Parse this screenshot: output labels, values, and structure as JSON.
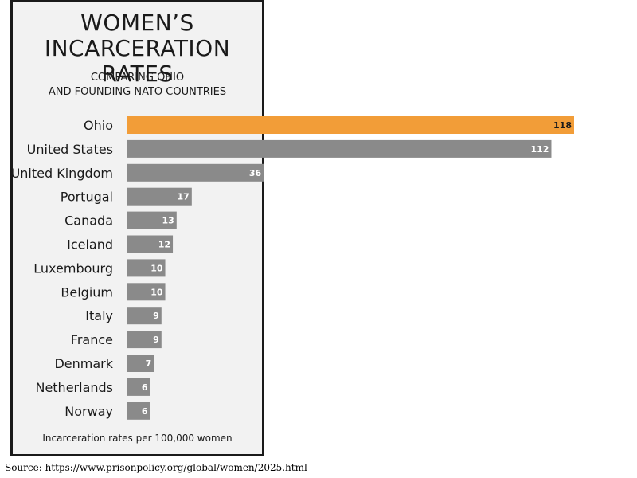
{
  "header": {
    "title_line1": "WOMEN’S",
    "title_line2": "INCARCERATION RATES",
    "subtitle_line1": "COMPARING OHIO",
    "subtitle_line2": "AND FOUNDING NATO COUNTRIES"
  },
  "caption": "Incarceration rates per 100,000 women",
  "source": "Source: https://www.prisonpolicy.org/global/women/2025.html",
  "colors": {
    "highlight": "#f29d38",
    "default": "#8a8a8a",
    "panel": "#f2f2f2"
  },
  "chart_data": {
    "type": "bar",
    "orientation": "horizontal",
    "categories": [
      "Ohio",
      "United States",
      "United Kingdom",
      "Portugal",
      "Canada",
      "Iceland",
      "Luxembourg",
      "Belgium",
      "Italy",
      "France",
      "Denmark",
      "Netherlands",
      "Norway"
    ],
    "values": [
      118,
      112,
      36,
      17,
      13,
      12,
      10,
      10,
      9,
      9,
      7,
      6,
      6
    ],
    "highlight": [
      "Ohio"
    ],
    "xlim": [
      0,
      118
    ],
    "grid": false,
    "legend": "none"
  }
}
